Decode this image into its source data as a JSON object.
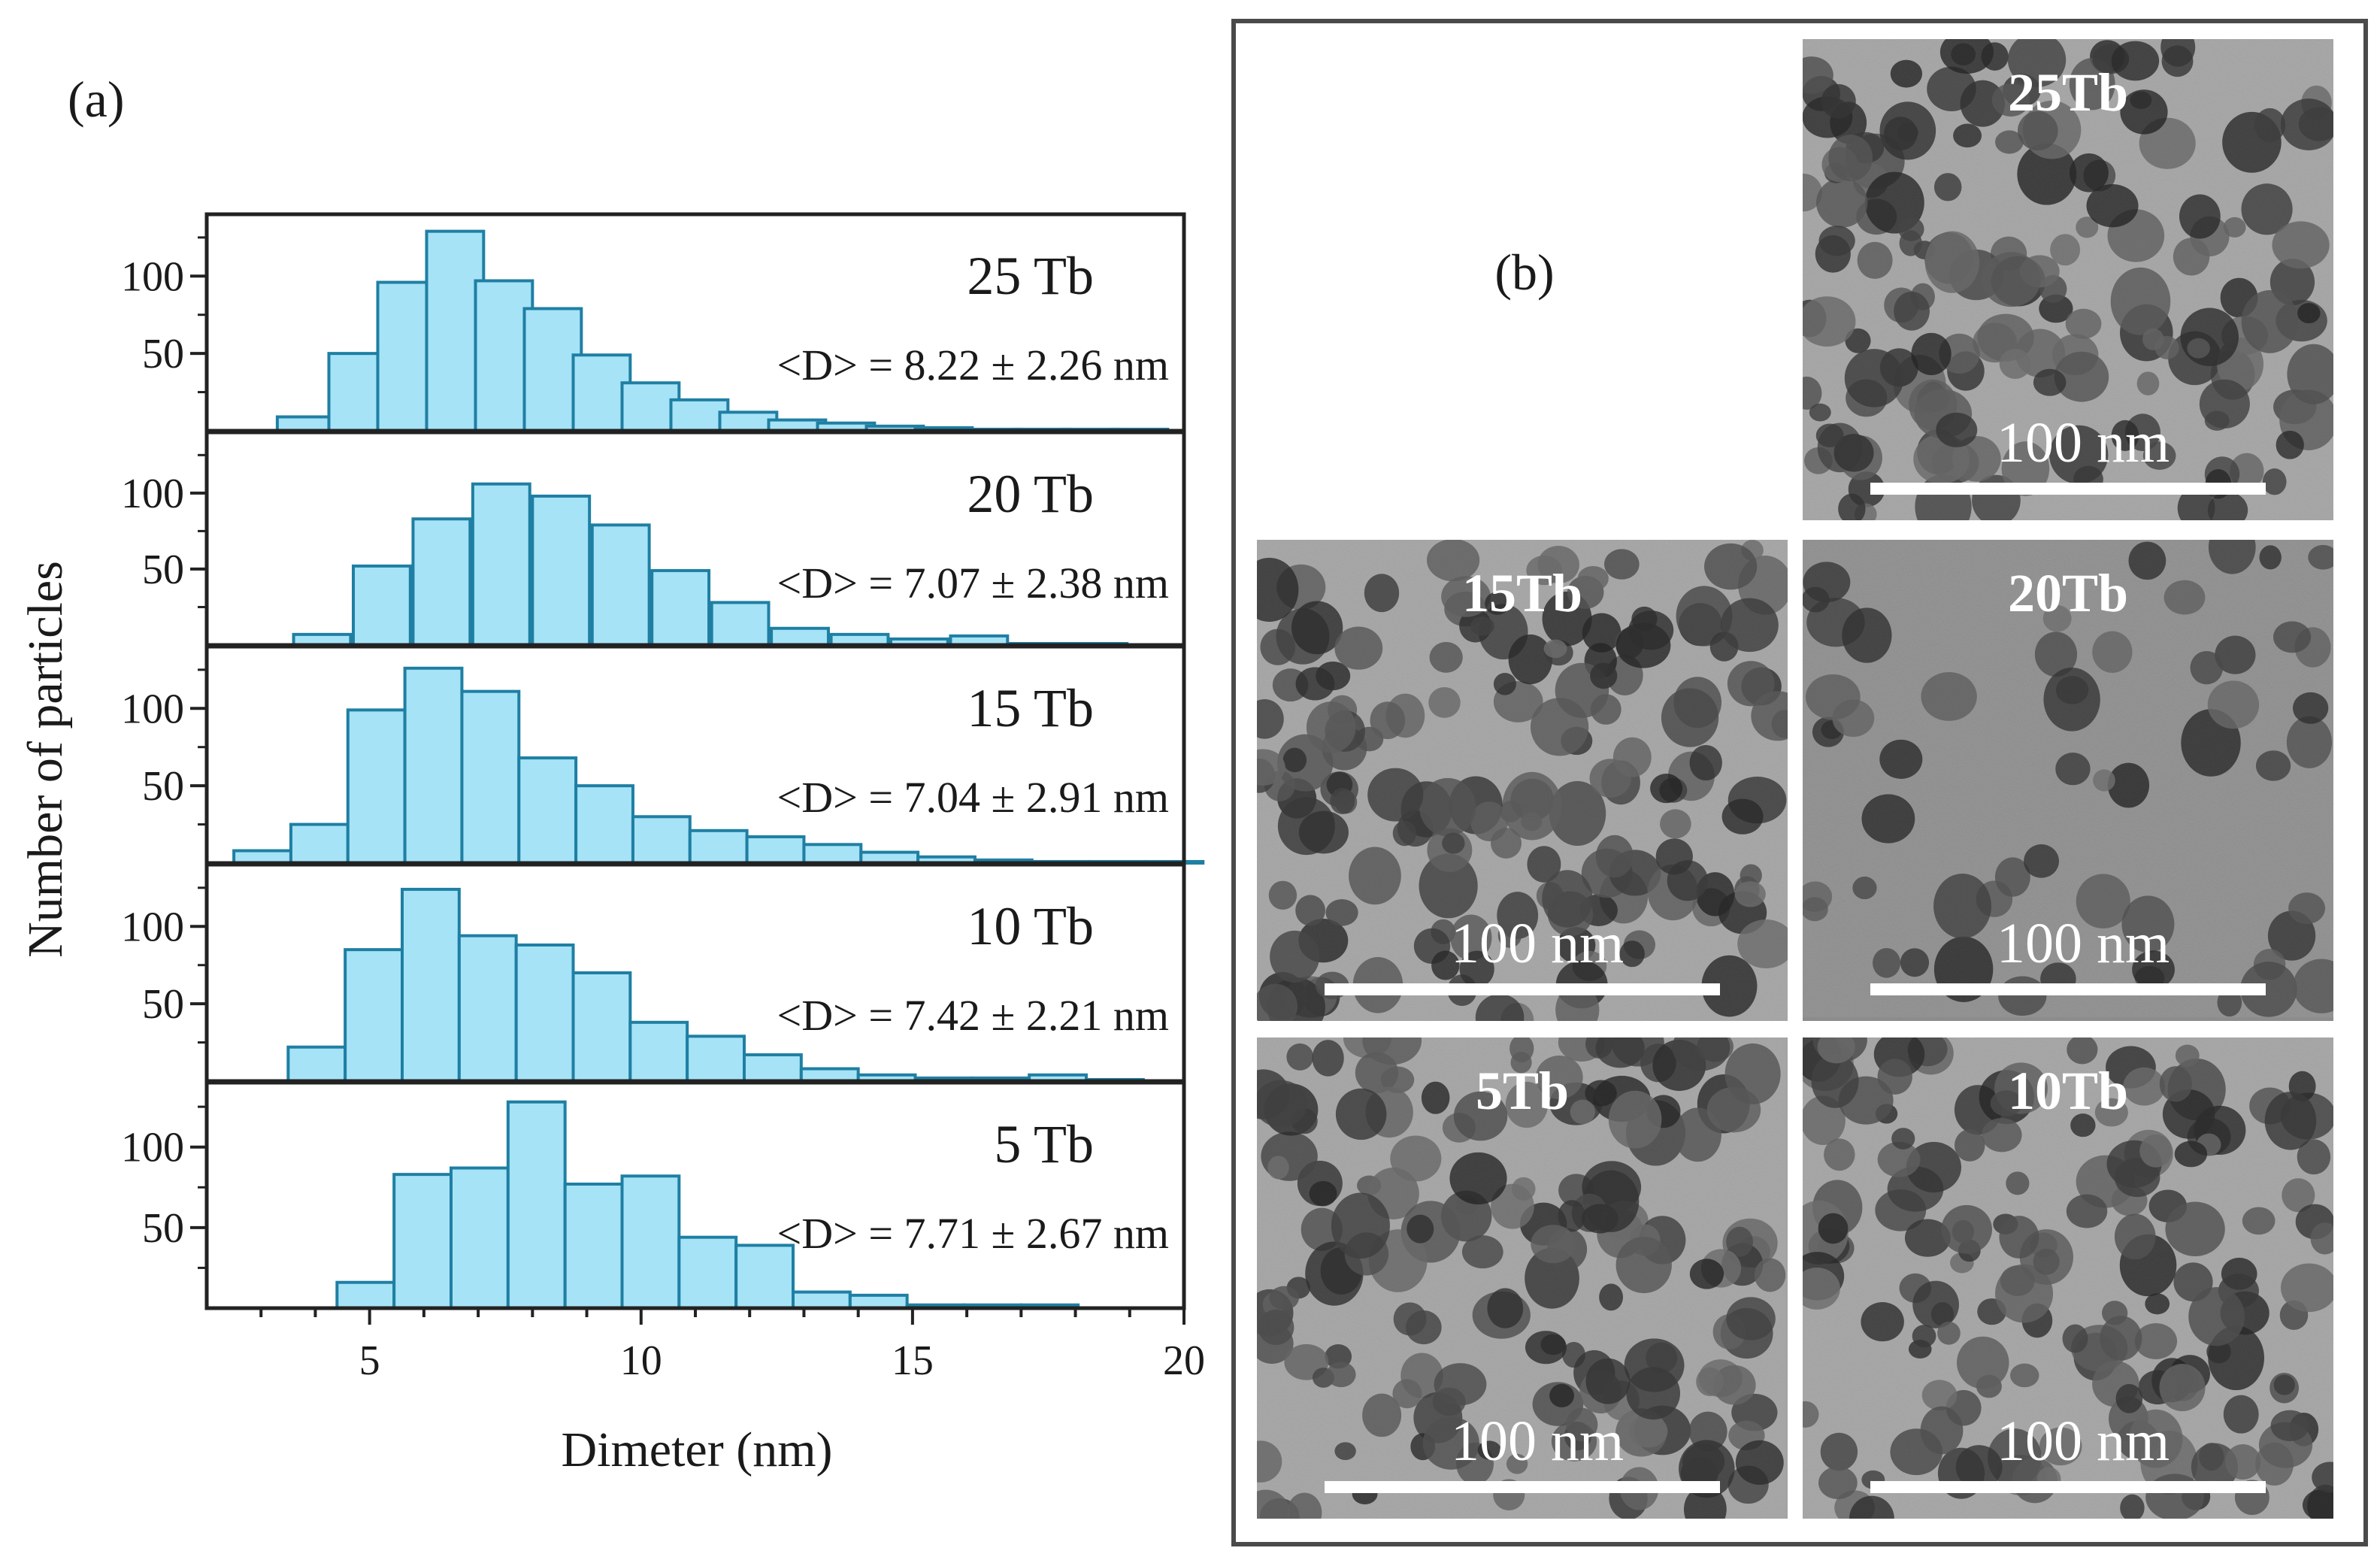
{
  "panel_a": {
    "label": "(a)"
  },
  "panel_b": {
    "label": "(b)"
  },
  "colors": {
    "bar_fill": "#a6e3f7",
    "bar_stroke": "#1f7fa3",
    "tem_bg": "#9a9a9a"
  },
  "chart_data": {
    "type": "bar",
    "subtype": "stacked-histograms",
    "xlabel": "Dimeter (nm)",
    "ylabel": "Number of particles",
    "xlim": [
      2,
      20
    ],
    "ylim": [
      0,
      140
    ],
    "xticks": [
      "5",
      "10",
      "15",
      "20"
    ],
    "yticks": [
      "50",
      "100"
    ],
    "bin_width": 1.05,
    "series": [
      {
        "name": "25 Tb",
        "stat": "<D> = 8.22 ± 2.26 nm",
        "bins": [
          3.3,
          4.25,
          5.15,
          6.05,
          6.95,
          7.85,
          8.75,
          9.65,
          10.55,
          11.45,
          12.35,
          13.25,
          14.15,
          15.05,
          15.95,
          16.85,
          17.75,
          18.65
        ],
        "counts": [
          9,
          50,
          96,
          129,
          97,
          79,
          49,
          31,
          20,
          12,
          7,
          5,
          3,
          2,
          1,
          1,
          1,
          1
        ]
      },
      {
        "name": "20 Tb",
        "stat": "<D> = 7.07 ± 2.38 nm",
        "bins": [
          3.6,
          4.7,
          5.8,
          6.9,
          8.0,
          9.1,
          10.2,
          11.3,
          12.4,
          13.5,
          14.6,
          15.7,
          16.8,
          17.9
        ],
        "counts": [
          7,
          52,
          83,
          106,
          98,
          79,
          49,
          28,
          11,
          7,
          4,
          6,
          1,
          1
        ]
      },
      {
        "name": "15 Tb",
        "stat": "<D> = 7.04 ± 2.91 nm",
        "bins": [
          2.5,
          3.55,
          4.6,
          5.65,
          6.7,
          7.75,
          8.8,
          9.85,
          10.9,
          11.95,
          13.0,
          14.05,
          15.1,
          16.15,
          17.2,
          18.25,
          19.3
        ],
        "counts": [
          8,
          25,
          99,
          126,
          111,
          68,
          50,
          30,
          21,
          17,
          12,
          7,
          4,
          2,
          1,
          1,
          1
        ]
      },
      {
        "name": "10 Tb",
        "stat": "<D> = 7.42 ± 2.21 nm",
        "bins": [
          3.5,
          4.55,
          5.6,
          6.65,
          7.7,
          8.75,
          9.8,
          10.85,
          11.9,
          12.95,
          14.0,
          15.05,
          16.1,
          17.15,
          18.2
        ],
        "counts": [
          22,
          85,
          124,
          94,
          88,
          70,
          38,
          29,
          17,
          8,
          4,
          2,
          2,
          4,
          1
        ]
      },
      {
        "name": "5 Tb",
        "stat": "<D> =  7.71 ± 2.67 nm",
        "bins": [
          4.4,
          5.45,
          6.5,
          7.55,
          8.6,
          9.65,
          10.7,
          11.75,
          12.8,
          13.85,
          14.9,
          15.95,
          17.0
        ],
        "counts": [
          16,
          83,
          87,
          128,
          77,
          82,
          44,
          39,
          10,
          8,
          2,
          2,
          2
        ]
      }
    ]
  },
  "tem_images": [
    {
      "label": "25Tb",
      "scale_bar": "100 nm"
    },
    {
      "label": "15Tb",
      "scale_bar": "100 nm"
    },
    {
      "label": "20Tb",
      "scale_bar": "100 nm"
    },
    {
      "label": "5Tb",
      "scale_bar": "100 nm"
    },
    {
      "label": "10Tb",
      "scale_bar": "100 nm"
    }
  ]
}
